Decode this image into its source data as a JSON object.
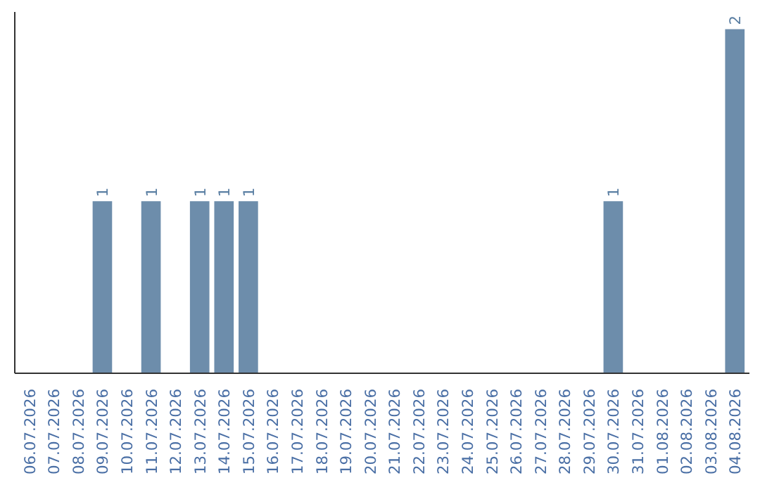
{
  "chart_data": {
    "type": "bar",
    "categories": [
      "06.07.2026",
      "07.07.2026",
      "08.07.2026",
      "09.07.2026",
      "10.07.2026",
      "11.07.2026",
      "12.07.2026",
      "13.07.2026",
      "14.07.2026",
      "15.07.2026",
      "16.07.2026",
      "17.07.2026",
      "18.07.2026",
      "19.07.2026",
      "20.07.2026",
      "21.07.2026",
      "22.07.2026",
      "23.07.2026",
      "24.07.2026",
      "25.07.2026",
      "26.07.2026",
      "27.07.2026",
      "28.07.2026",
      "29.07.2026",
      "30.07.2026",
      "31.07.2026",
      "01.08.2026",
      "02.08.2026",
      "03.08.2026",
      "04.08.2026"
    ],
    "values": [
      0,
      0,
      0,
      1,
      0,
      1,
      0,
      1,
      1,
      1,
      0,
      0,
      0,
      0,
      0,
      0,
      0,
      0,
      0,
      0,
      0,
      0,
      0,
      0,
      1,
      0,
      0,
      0,
      0,
      2
    ],
    "value_labels": [
      null,
      null,
      null,
      "1",
      null,
      "1",
      null,
      "1",
      "1",
      "1",
      null,
      null,
      null,
      null,
      null,
      null,
      null,
      null,
      null,
      null,
      null,
      null,
      null,
      null,
      "1",
      null,
      null,
      null,
      null,
      "2"
    ],
    "color": "#6d8dab",
    "ylim": [
      0,
      2.1
    ],
    "tick_labels": "x",
    "grid": false
  }
}
